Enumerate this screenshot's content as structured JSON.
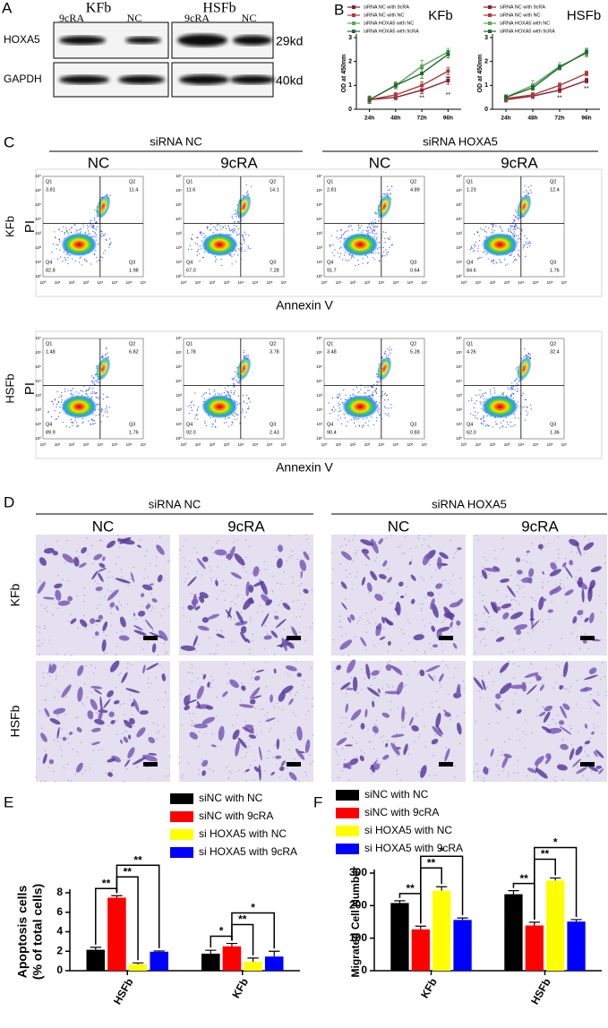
{
  "panels": [
    "A",
    "B",
    "C",
    "D",
    "E",
    "F"
  ],
  "blot": {
    "cell_lines": [
      "KFb",
      "HSFb"
    ],
    "lanes": [
      "9cRA",
      "NC",
      "9cRA",
      "NC"
    ],
    "proteins": [
      "HOXA5",
      "GAPDH"
    ],
    "sizes": [
      "29kd",
      "40kd"
    ]
  },
  "flow": {
    "groups": [
      "siRNA NC",
      "siRNA HOXA5"
    ],
    "columns": [
      "NC",
      "9cRA",
      "NC",
      "9cRA"
    ],
    "rows": [
      "KFb",
      "HSFb"
    ],
    "ylabel": "PI",
    "xlabel": "Annexin V",
    "quadrant_names": [
      "Q1",
      "Q2",
      "Q3",
      "Q4"
    ],
    "ticks": [
      "10⁰",
      "10¹",
      "10²",
      "10³",
      "10⁴",
      "10⁵",
      "10⁶",
      "10⁷"
    ],
    "plots": [
      [
        [
          "3.81",
          "11.4",
          "1.98",
          "82.8"
        ],
        [
          "11.6",
          "14.1",
          "7.28",
          "67.0"
        ],
        [
          "2.81",
          "4.89",
          "0.64",
          "91.7"
        ],
        [
          "1.23",
          "12.4",
          "1.76",
          "84.6"
        ]
      ],
      [
        [
          "1.48",
          "6.82",
          "1.76",
          "89.9"
        ],
        [
          "1.78",
          "3.78",
          "2.43",
          "92.0"
        ],
        [
          "3.48",
          "5.28",
          "0.83",
          "90.4"
        ],
        [
          "4.26",
          "32.4",
          "1.36",
          "62.0"
        ]
      ]
    ]
  },
  "migration": {
    "groups": [
      "siRNA NC",
      "siRNA HOXA5"
    ],
    "columns": [
      "NC",
      "9cRA",
      "NC",
      "9cRA"
    ],
    "rows": [
      "KFb",
      "HSFb"
    ]
  },
  "chart_data": [
    {
      "type": "line",
      "title": "KFb",
      "ylabel": "OD at 450nm",
      "categories": [
        "24h",
        "48h",
        "72h",
        "96h"
      ],
      "ylim": [
        0,
        3
      ],
      "yticks": [
        0,
        1,
        2,
        3
      ],
      "series": [
        {
          "name": "siRNA NC with 9cRA",
          "color": "#8e1b2e",
          "values": [
            0.4,
            0.5,
            0.8,
            1.2
          ],
          "errors": [
            0.1,
            0.1,
            0.15,
            0.15
          ]
        },
        {
          "name": "siRNA NC with NC",
          "color": "#b03a3a",
          "values": [
            0.4,
            0.6,
            1.0,
            1.6
          ],
          "errors": [
            0.1,
            0.1,
            0.15,
            0.15
          ]
        },
        {
          "name": "siRNA HOXA5 with NC",
          "color": "#5aa55a",
          "values": [
            0.4,
            1.0,
            1.8,
            2.4
          ],
          "errors": [
            0.15,
            0.15,
            0.25,
            0.15
          ]
        },
        {
          "name": "siRNA HOXA5 with 9cRA",
          "color": "#1f6b2e",
          "values": [
            0.4,
            1.0,
            1.5,
            2.3
          ],
          "errors": [
            0.15,
            0.1,
            0.2,
            0.15
          ]
        }
      ],
      "annotations": [
        {
          "text": "**",
          "category": 2,
          "series": 0
        },
        {
          "text": "**",
          "category": 3,
          "series": 1
        },
        {
          "text": "**",
          "category": 3,
          "series": 0
        }
      ]
    },
    {
      "type": "line",
      "title": "HSFb",
      "ylabel": "OD at 450nm",
      "categories": [
        "24h",
        "48h",
        "72h",
        "96h"
      ],
      "ylim": [
        0,
        3
      ],
      "yticks": [
        0,
        1,
        2,
        3
      ],
      "series": [
        {
          "name": "siRNA NC with 9cRA",
          "color": "#8e1b2e",
          "values": [
            0.4,
            0.55,
            0.8,
            1.2
          ],
          "errors": [
            0.1,
            0.1,
            0.1,
            0.1
          ]
        },
        {
          "name": "siRNA NC with NC",
          "color": "#b03a3a",
          "values": [
            0.45,
            0.6,
            1.0,
            1.5
          ],
          "errors": [
            0.1,
            0.1,
            0.1,
            0.1
          ]
        },
        {
          "name": "siRNA HOXA5 with NC",
          "color": "#5aa55a",
          "values": [
            0.5,
            1.0,
            1.8,
            2.35
          ],
          "errors": [
            0.1,
            0.2,
            0.15,
            0.15
          ]
        },
        {
          "name": "siRNA HOXA5 with 9cRA",
          "color": "#1f6b2e",
          "values": [
            0.5,
            0.9,
            1.75,
            2.4
          ],
          "errors": [
            0.1,
            0.1,
            0.1,
            0.15
          ]
        }
      ],
      "annotations": [
        {
          "text": "**",
          "category": 2,
          "series": 0
        },
        {
          "text": "**",
          "category": 3,
          "series": 0
        }
      ]
    },
    {
      "type": "bar",
      "ylabel": [
        "Apoptosis cells",
        "(% of total cells)"
      ],
      "categories": [
        "HSFb",
        "KFb"
      ],
      "ylim": [
        0,
        8
      ],
      "yticks": [
        0,
        2,
        4,
        6,
        8
      ],
      "series": [
        {
          "name": "siNC with NC",
          "color": "#000000",
          "values": [
            2.15,
            1.75
          ],
          "errors": [
            0.25,
            0.35
          ]
        },
        {
          "name": "siNC with 9cRA",
          "color": "#ff0000",
          "values": [
            7.5,
            2.5
          ],
          "errors": [
            0.2,
            0.3
          ]
        },
        {
          "name": "si HOXA5 with NC",
          "color": "#ffff00",
          "values": [
            0.65,
            0.9
          ],
          "errors": [
            0.15,
            0.4
          ]
        },
        {
          "name": "si HOXA5 with 9cRA",
          "color": "#0000ff",
          "values": [
            1.95,
            1.45
          ],
          "errors": [
            0.08,
            0.55
          ]
        }
      ],
      "annotations": [
        {
          "text": "**",
          "category": 0,
          "series": [
            0,
            1
          ]
        },
        {
          "text": "**",
          "category": 0,
          "series": [
            1,
            2
          ]
        },
        {
          "text": "**",
          "category": 0,
          "series": [
            1,
            3
          ]
        },
        {
          "text": "*",
          "category": 1,
          "series": [
            0,
            1
          ]
        },
        {
          "text": "**",
          "category": 1,
          "series": [
            1,
            2
          ]
        },
        {
          "text": "*",
          "category": 1,
          "series": [
            1,
            3
          ]
        }
      ]
    },
    {
      "type": "bar",
      "ylabel": [
        "Migrated Cell Number"
      ],
      "categories": [
        "KFb",
        "HSFb"
      ],
      "ylim": [
        0,
        300
      ],
      "yticks": [
        0,
        100,
        200,
        300
      ],
      "series": [
        {
          "name": "siNC with NC",
          "color": "#000000",
          "values": [
            208,
            235
          ],
          "errors": [
            7,
            11
          ]
        },
        {
          "name": "siNC with 9cRA",
          "color": "#ff0000",
          "values": [
            127,
            139
          ],
          "errors": [
            10,
            10
          ]
        },
        {
          "name": "si HOXA5 with NC",
          "color": "#ffff00",
          "values": [
            246,
            277
          ],
          "errors": [
            12,
            8
          ]
        },
        {
          "name": "si HOXA5 with 9cRA",
          "color": "#0000ff",
          "values": [
            156,
            151
          ],
          "errors": [
            6,
            6
          ]
        }
      ],
      "annotations": [
        {
          "text": "**",
          "category": 0,
          "series": [
            0,
            1
          ]
        },
        {
          "text": "**",
          "category": 0,
          "series": [
            1,
            2
          ]
        },
        {
          "text": "*",
          "category": 0,
          "series": [
            1,
            3
          ]
        },
        {
          "text": "**",
          "category": 1,
          "series": [
            0,
            1
          ]
        },
        {
          "text": "**",
          "category": 1,
          "series": [
            1,
            2
          ]
        },
        {
          "text": "*",
          "category": 1,
          "series": [
            1,
            3
          ]
        }
      ]
    }
  ]
}
